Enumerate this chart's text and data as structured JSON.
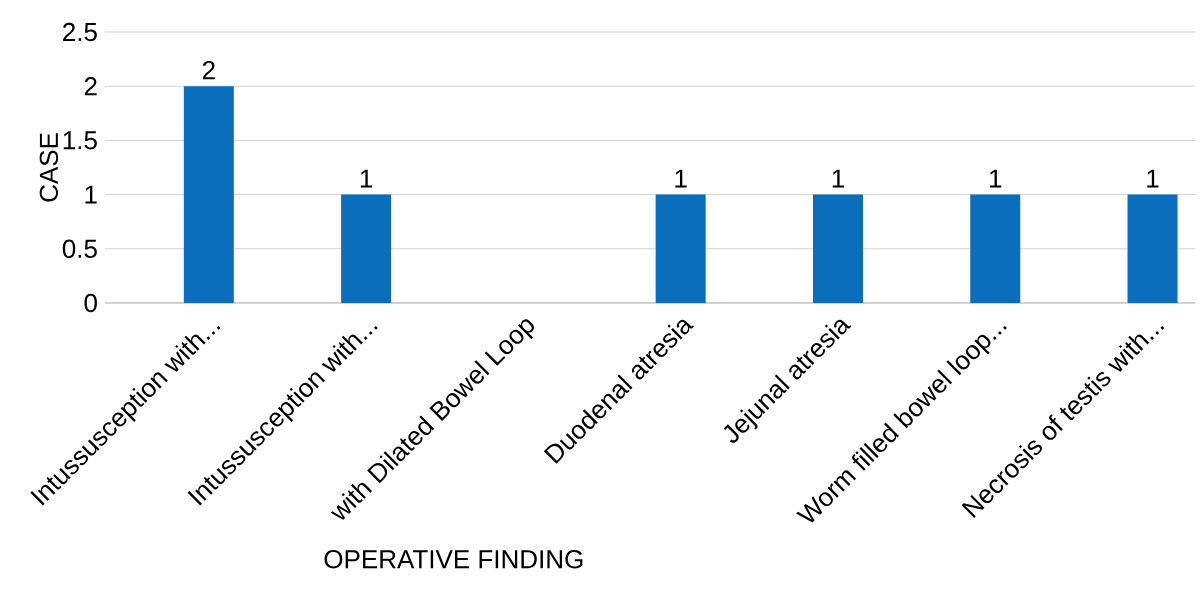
{
  "chart_data": {
    "type": "bar",
    "xlabel": "OPERATIVE FINDING",
    "ylabel": "CASE",
    "categories": [
      "Intussusception with...",
      "Intussusception with...",
      "with Dilated Bowel Loop",
      "Duodenal atresia",
      "Jejunal atresia",
      "Worm filled bowel loop...",
      "Necrosis of testis with..."
    ],
    "values": [
      2,
      1,
      null,
      1,
      1,
      1,
      1
    ],
    "color": "#0a6ebd",
    "ylim": [
      0,
      2.5
    ],
    "yticks": [
      0,
      0.5,
      1,
      1.5,
      2,
      2.5
    ],
    "grid": "y",
    "data_labels": true
  }
}
